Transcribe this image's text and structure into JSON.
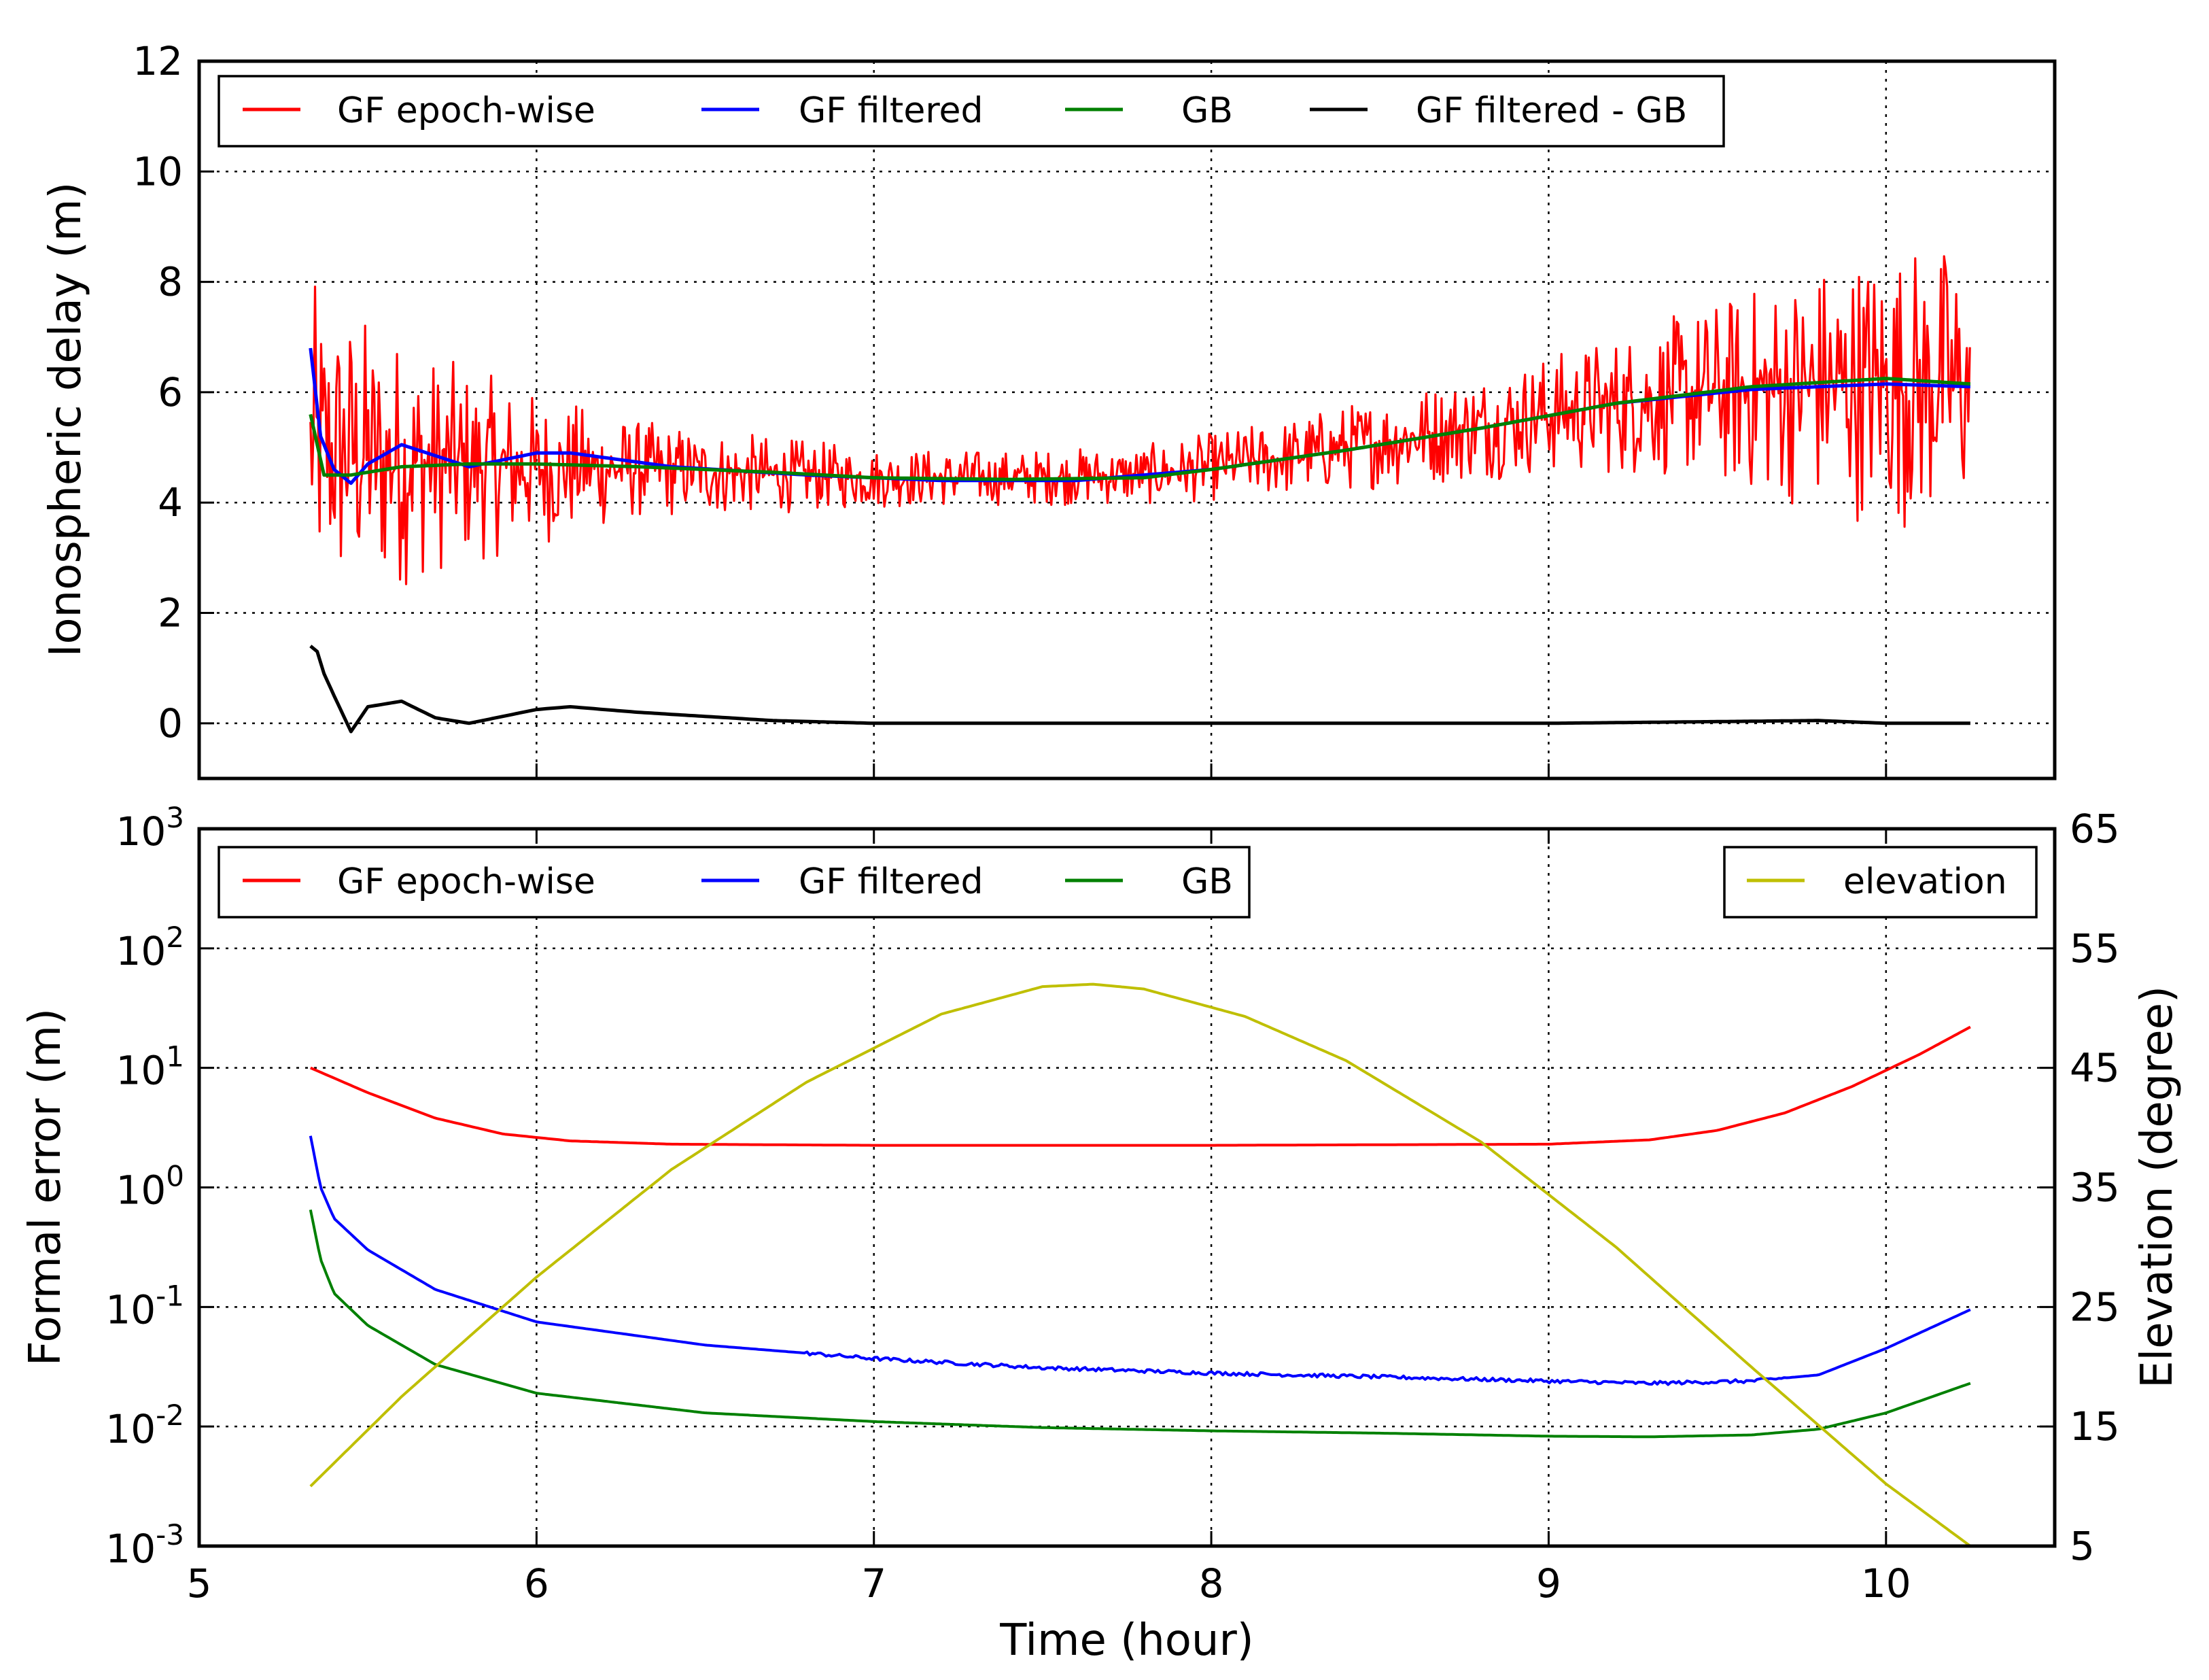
{
  "colors": {
    "red": "#ff0000",
    "blue": "#0000ff",
    "green": "#008000",
    "black": "#000000",
    "yellow": "#bfbf00"
  },
  "chart_data": [
    {
      "type": "line",
      "xlabel": "",
      "ylabel": "Ionospheric delay (m)",
      "xlim": [
        5,
        10.5
      ],
      "ylim": [
        -1,
        12
      ],
      "x_ticks": [
        5,
        6,
        7,
        8,
        9,
        10
      ],
      "y_ticks": [
        0,
        2,
        4,
        6,
        8,
        10,
        12
      ],
      "y_tick_labels": [
        "0",
        "2",
        "4",
        "6",
        "8",
        "10",
        "12"
      ],
      "grid": true,
      "legend": "top, single row",
      "series": [
        {
          "name": "GF epoch-wise",
          "color": "red",
          "noisy": true,
          "x": [
            5.33,
            5.5,
            5.7,
            6.0,
            6.3,
            6.7,
            7.0,
            7.4,
            7.8,
            8.2,
            8.6,
            9.0,
            9.4,
            9.8,
            10.0,
            10.25
          ],
          "values": [
            5.0,
            4.8,
            4.7,
            4.6,
            4.6,
            4.5,
            4.45,
            4.45,
            4.5,
            4.8,
            5.2,
            5.6,
            5.95,
            6.1,
            6.15,
            6.1
          ],
          "spread": [
            3.0,
            2.6,
            2.0,
            1.4,
            0.9,
            0.7,
            0.55,
            0.5,
            0.55,
            0.7,
            0.9,
            1.1,
            1.5,
            2.3,
            2.6,
            2.6
          ]
        },
        {
          "name": "GF filtered",
          "color": "blue",
          "x": [
            5.33,
            5.36,
            5.4,
            5.45,
            5.5,
            5.6,
            5.8,
            6.0,
            6.1,
            6.4,
            6.8,
            7.2,
            7.6,
            8.0,
            8.4,
            8.8,
            9.2,
            9.6,
            10.0,
            10.25
          ],
          "values": [
            6.8,
            5.2,
            4.6,
            4.35,
            4.7,
            5.05,
            4.65,
            4.9,
            4.9,
            4.65,
            4.5,
            4.4,
            4.4,
            4.6,
            4.95,
            5.35,
            5.8,
            6.05,
            6.15,
            6.1
          ]
        },
        {
          "name": "GB",
          "color": "green",
          "x": [
            5.33,
            5.37,
            5.45,
            5.6,
            5.8,
            6.0,
            6.3,
            6.7,
            7.0,
            7.4,
            7.8,
            8.0,
            8.4,
            8.8,
            9.2,
            9.6,
            10.0,
            10.25
          ],
          "values": [
            5.6,
            4.5,
            4.5,
            4.65,
            4.7,
            4.7,
            4.65,
            4.55,
            4.45,
            4.42,
            4.45,
            4.6,
            4.95,
            5.35,
            5.8,
            6.1,
            6.25,
            6.15
          ]
        },
        {
          "name": "GF filtered - GB",
          "color": "black",
          "x": [
            5.33,
            5.35,
            5.37,
            5.4,
            5.45,
            5.5,
            5.6,
            5.7,
            5.8,
            6.0,
            6.1,
            6.3,
            6.7,
            7.0,
            7.5,
            8.0,
            9.0,
            9.8,
            10.0,
            10.25
          ],
          "values": [
            1.4,
            1.3,
            0.9,
            0.5,
            -0.15,
            0.3,
            0.4,
            0.1,
            0.0,
            0.25,
            0.3,
            0.2,
            0.05,
            0.0,
            0.0,
            0.0,
            0.0,
            0.05,
            0.0,
            0.0
          ]
        }
      ]
    },
    {
      "type": "line",
      "xlabel": "Time (hour)",
      "ylabel": "Formal error (m)",
      "y2label": "Elevation (degree)",
      "xlim": [
        5,
        10.5
      ],
      "ylim": [
        0.001,
        1000
      ],
      "yscale": "log",
      "y2lim": [
        5,
        65
      ],
      "x_ticks": [
        5,
        6,
        7,
        8,
        9,
        10
      ],
      "x_tick_labels": [
        "5",
        "6",
        "7",
        "8",
        "9",
        "10"
      ],
      "y_ticks": [
        0.001,
        0.01,
        0.1,
        1,
        10,
        100,
        1000
      ],
      "y_tick_base": "10",
      "y_tick_exponents": [
        "-3",
        "-2",
        "-1",
        "0",
        "1",
        "2",
        "3"
      ],
      "y2_ticks": [
        5,
        15,
        25,
        35,
        45,
        55,
        65
      ],
      "y2_tick_labels": [
        "5",
        "15",
        "25",
        "35",
        "45",
        "55",
        "65"
      ],
      "grid": true,
      "legend": "top-left",
      "legend2": "top-right",
      "series": [
        {
          "name": "GF epoch-wise",
          "color": "red",
          "axis": "left",
          "x": [
            5.33,
            5.5,
            5.7,
            5.9,
            6.1,
            6.4,
            7.0,
            8.0,
            9.0,
            9.3,
            9.5,
            9.7,
            9.9,
            10.1,
            10.25
          ],
          "values": [
            10,
            6.2,
            3.8,
            2.8,
            2.45,
            2.3,
            2.25,
            2.25,
            2.3,
            2.5,
            3.0,
            4.2,
            7.0,
            13.0,
            22.0
          ]
        },
        {
          "name": "GF filtered",
          "color": "blue",
          "axis": "left",
          "x": [
            5.33,
            5.36,
            5.4,
            5.5,
            5.7,
            6.0,
            6.5,
            7.0,
            7.5,
            8.0,
            8.5,
            9.0,
            9.3,
            9.6,
            9.8,
            10.0,
            10.25
          ],
          "values": [
            2.7,
            1.0,
            0.55,
            0.3,
            0.14,
            0.075,
            0.048,
            0.037,
            0.031,
            0.028,
            0.026,
            0.024,
            0.023,
            0.024,
            0.027,
            0.045,
            0.095
          ]
        },
        {
          "name": "GB",
          "color": "green",
          "axis": "left",
          "x": [
            5.33,
            5.36,
            5.4,
            5.5,
            5.7,
            6.0,
            6.5,
            7.0,
            7.5,
            8.0,
            8.5,
            9.0,
            9.3,
            9.6,
            9.8,
            10.0,
            10.25
          ],
          "values": [
            0.65,
            0.25,
            0.13,
            0.07,
            0.033,
            0.019,
            0.013,
            0.011,
            0.0098,
            0.0092,
            0.0088,
            0.0083,
            0.0082,
            0.0085,
            0.0095,
            0.013,
            0.023
          ]
        },
        {
          "name": "elevation",
          "color": "yellow",
          "axis": "right",
          "x": [
            5.33,
            5.6,
            6.0,
            6.4,
            6.8,
            7.2,
            7.5,
            7.65,
            7.8,
            8.1,
            8.4,
            8.8,
            9.2,
            9.6,
            10.0,
            10.25
          ],
          "values": [
            10,
            17.5,
            27.5,
            36.5,
            43.8,
            49.5,
            51.8,
            52.0,
            51.6,
            49.3,
            45.6,
            38.8,
            30.0,
            20.0,
            10.2,
            5.0
          ]
        }
      ]
    }
  ]
}
